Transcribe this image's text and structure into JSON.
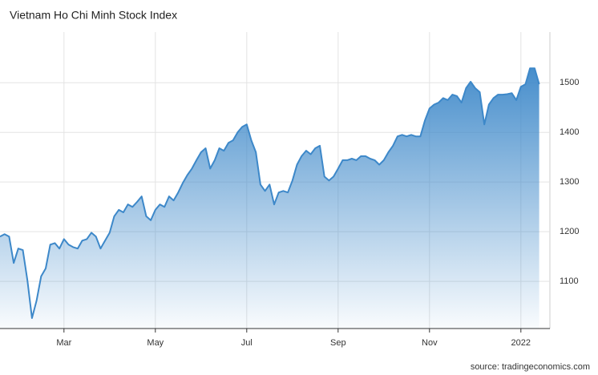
{
  "chart_data": {
    "type": "area",
    "title": "Vietnam Ho Chi Minh Stock Index",
    "source": "source: tradingeconomics.com",
    "categories": [
      null,
      null,
      null,
      null,
      null,
      null,
      null,
      null,
      null,
      null,
      null,
      null,
      null,
      null,
      "Mar",
      null,
      null,
      null,
      null,
      null,
      null,
      null,
      null,
      null,
      null,
      null,
      null,
      null,
      null,
      null,
      null,
      null,
      null,
      null,
      "May",
      null,
      null,
      null,
      null,
      null,
      null,
      null,
      null,
      null,
      null,
      null,
      null,
      null,
      null,
      null,
      null,
      null,
      null,
      null,
      "Jul",
      null,
      null,
      null,
      null,
      null,
      null,
      null,
      null,
      null,
      null,
      null,
      null,
      null,
      null,
      null,
      null,
      null,
      null,
      null,
      "Sep",
      null,
      null,
      null,
      null,
      null,
      null,
      null,
      null,
      null,
      null,
      null,
      null,
      null,
      null,
      null,
      null,
      null,
      null,
      null,
      "Nov",
      null,
      null,
      null,
      null,
      null,
      null,
      null,
      null,
      null,
      null,
      null,
      null,
      null,
      null,
      null,
      null,
      null,
      null,
      null,
      "2022",
      null,
      null,
      null,
      null
    ],
    "series": [
      {
        "name": "Vietnam Ho Chi Minh Stock Index",
        "color": "#3d88c9",
        "values": [
          1190,
          1195,
          1190,
          1137,
          1166,
          1163,
          1102,
          1026,
          1061,
          1110,
          1126,
          1174,
          1177,
          1166,
          1185,
          1174,
          1169,
          1166,
          1182,
          1185,
          1198,
          1190,
          1166,
          1182,
          1198,
          1231,
          1244,
          1239,
          1255,
          1250,
          1260,
          1271,
          1231,
          1223,
          1244,
          1255,
          1250,
          1271,
          1263,
          1279,
          1298,
          1314,
          1327,
          1344,
          1360,
          1368,
          1327,
          1344,
          1368,
          1363,
          1379,
          1384,
          1400,
          1411,
          1416,
          1384,
          1360,
          1295,
          1282,
          1295,
          1255,
          1279,
          1282,
          1279,
          1303,
          1335,
          1352,
          1363,
          1356,
          1368,
          1373,
          1311,
          1303,
          1311,
          1327,
          1344,
          1344,
          1347,
          1344,
          1352,
          1352,
          1347,
          1344,
          1335,
          1344,
          1360,
          1373,
          1392,
          1395,
          1392,
          1395,
          1392,
          1392,
          1424,
          1448,
          1456,
          1460,
          1469,
          1465,
          1476,
          1473,
          1460,
          1489,
          1502,
          1489,
          1481,
          1416,
          1456,
          1469,
          1476,
          1476,
          1477,
          1479,
          1465,
          1492,
          1497,
          1529,
          1529,
          1497
        ]
      }
    ],
    "ylim": [
      1005,
      1602
    ],
    "yticks": [
      1100,
      1200,
      1300,
      1400,
      1500
    ],
    "grid": true
  }
}
